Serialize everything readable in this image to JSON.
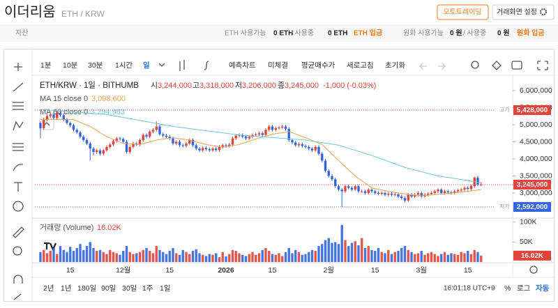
{
  "header": {
    "title": "이더리움",
    "pair": "ETH / KRW",
    "buttons": [
      "오토트레이딩",
      "거래화면 설정"
    ]
  },
  "asset_bar": {
    "label": "자산",
    "eth_available_label": "ETH 사용가능",
    "eth_available": "0 ETH",
    "eth_in_use_label": "/ 사용중",
    "eth_in_use": "0 ETH",
    "eth_deposit": "ETH 입금",
    "krw_available_label": "원화 사용가능",
    "krw_available": "0 원",
    "krw_in_use_label": "/ 사용중",
    "krw_in_use": "0 원",
    "krw_deposit": "원화 입금"
  },
  "toolbar": {
    "intervals": [
      "1분",
      "10분",
      "30분",
      "1시간",
      "일"
    ],
    "actions": [
      "예측차트",
      "미체결",
      "평균매수가",
      "새로고침",
      "초기화"
    ]
  },
  "bottom_bar": {
    "ranges": [
      "2년",
      "1년",
      "180일",
      "90일",
      "30일",
      "1주",
      "1일"
    ],
    "time": "16:01:18 UTC+9",
    "options": [
      "%",
      "로그",
      "자동"
    ]
  },
  "chart_data": {
    "type": "candlestick",
    "title": "ETH/KRW · 1일 · BITHUMB",
    "ohlc_legend": [
      {
        "name": "시",
        "value": "3,244,000"
      },
      {
        "name": "고",
        "value": "3,318,000"
      },
      {
        "name": "저",
        "value": "3,206,000"
      },
      {
        "name": "종",
        "value": "3,245,000"
      }
    ],
    "change": "-1,000 (-0.03%)",
    "categories": [
      null,
      null,
      null,
      null,
      null,
      null,
      null,
      null,
      null,
      "15",
      null,
      null,
      null,
      null,
      null,
      null,
      null,
      null,
      null,
      null,
      null,
      null,
      null,
      null,
      null,
      "12월",
      null,
      null,
      null,
      null,
      null,
      null,
      null,
      null,
      null,
      null,
      null,
      null,
      null,
      "15",
      null,
      null,
      null,
      null,
      null,
      null,
      null,
      null,
      null,
      null,
      null,
      null,
      null,
      null,
      null,
      null,
      "2026",
      null,
      null,
      null,
      null,
      null,
      null,
      null,
      null,
      null,
      null,
      null,
      null,
      null,
      "15",
      null,
      null,
      null,
      null,
      null,
      null,
      null,
      null,
      null,
      null,
      null,
      null,
      null,
      null,
      null,
      null,
      "2월",
      null,
      null,
      null,
      null,
      null,
      null,
      null,
      null,
      null,
      null,
      null,
      null,
      null,
      "15",
      null,
      null,
      null,
      null,
      null,
      null,
      null,
      null,
      null,
      null,
      null,
      null,
      null,
      "3월",
      null,
      null,
      null,
      null,
      null,
      null,
      null,
      null,
      null,
      null,
      null,
      null,
      null,
      "15",
      null,
      null,
      null,
      null
    ],
    "open": [
      5050000,
      4900000,
      5150000,
      5250000,
      5300000,
      5200000,
      5350000,
      5280000,
      5150000,
      5050000,
      4980000,
      4850000,
      4780000,
      4650000,
      4550000,
      4450000,
      4300000,
      4200000,
      4250000,
      4150000,
      4250000,
      4350000,
      4420000,
      4520000,
      4600000,
      4580000,
      4500000,
      4200000,
      4350000,
      4450000,
      4420000,
      4550000,
      4700000,
      4650000,
      4800000,
      4850000,
      4950000,
      4720000,
      4680000,
      4650000,
      4600000,
      4450000,
      4500000,
      4400000,
      4380000,
      4450000,
      4550000,
      4400000,
      4300000,
      4250000,
      4320000,
      4280000,
      4250000,
      4300000,
      4260000,
      4350000,
      4400000,
      4380000,
      4420000,
      4600000,
      4680000,
      4700000,
      4650000,
      4600000,
      4650000,
      4700000,
      4720000,
      4750000,
      4700000,
      4850000,
      4950000,
      4850000,
      4900000,
      4920000,
      4950000,
      4880000,
      4550000,
      4480000,
      4400000,
      4430000,
      4380000,
      4350000,
      4300000,
      4250000,
      4350000,
      4150000,
      3950000,
      3650000,
      3500000,
      3400000,
      3200000,
      3100000,
      3050000,
      3200000,
      3150000,
      3100000,
      3200000,
      3050000,
      3050000,
      3000000,
      3100000,
      3050000,
      3000000,
      2980000,
      3000000,
      2950000,
      2980000,
      2950000,
      2960000,
      2900000,
      2850000,
      2780000,
      2950000,
      2900000,
      2950000,
      3000000,
      2900000,
      2950000,
      2980000,
      3000000,
      3050000,
      3100000,
      3000000,
      3050000,
      3020000,
      3000000,
      3050000,
      3080000,
      3100000,
      3150000,
      3120000,
      3200000,
      3450000,
      3244000
    ],
    "high": [
      5100000,
      5200000,
      5300000,
      5350000,
      5350000,
      5400000,
      5428000,
      5330000,
      5200000,
      5100000,
      5030000,
      4900000,
      4830000,
      4700000,
      4600000,
      4500000,
      4350000,
      4300000,
      4300000,
      4300000,
      4400000,
      4470000,
      4570000,
      4650000,
      4650000,
      4630000,
      4550000,
      4400000,
      4500000,
      4500000,
      4600000,
      4750000,
      4750000,
      4850000,
      4900000,
      5100000,
      5000000,
      4770000,
      4730000,
      4700000,
      4650000,
      4550000,
      4550000,
      4450000,
      4500000,
      4600000,
      4600000,
      4450000,
      4350000,
      4370000,
      4370000,
      4330000,
      4350000,
      4350000,
      4400000,
      4450000,
      4450000,
      4470000,
      4650000,
      4730000,
      4750000,
      4750000,
      4700000,
      4700000,
      4750000,
      4770000,
      4800000,
      4800000,
      4900000,
      5000000,
      5000000,
      4950000,
      4970000,
      5000000,
      5000000,
      4930000,
      4600000,
      4530000,
      4480000,
      4480000,
      4430000,
      4400000,
      4350000,
      4400000,
      4400000,
      4200000,
      4000000,
      3700000,
      3550000,
      3450000,
      3250000,
      3150000,
      3250000,
      3250000,
      3200000,
      3250000,
      3250000,
      3100000,
      3100000,
      3150000,
      3150000,
      3100000,
      3050000,
      3050000,
      3050000,
      3030000,
      3030000,
      3010000,
      3010000,
      2950000,
      2900000,
      3000000,
      3000000,
      3000000,
      3050000,
      3050000,
      3000000,
      3030000,
      3050000,
      3100000,
      3150000,
      3150000,
      3100000,
      3100000,
      3070000,
      3100000,
      3130000,
      3150000,
      3200000,
      3200000,
      3250000,
      3480000,
      3500000,
      3318000
    ],
    "low": [
      4600000,
      4850000,
      5100000,
      5200000,
      5150000,
      5150000,
      5230000,
      5100000,
      5000000,
      4930000,
      4800000,
      4730000,
      4600000,
      4500000,
      4400000,
      3950000,
      4100000,
      4150000,
      4100000,
      4100000,
      4200000,
      4300000,
      4370000,
      4470000,
      4530000,
      4450000,
      4150000,
      4150000,
      4300000,
      4370000,
      4370000,
      4500000,
      4600000,
      4600000,
      4750000,
      4800000,
      4670000,
      4630000,
      4600000,
      4550000,
      4400000,
      4400000,
      4350000,
      4330000,
      4330000,
      4400000,
      4350000,
      4250000,
      4200000,
      4200000,
      4230000,
      4200000,
      4200000,
      4210000,
      4210000,
      4300000,
      4330000,
      4330000,
      4370000,
      4550000,
      4630000,
      4600000,
      4550000,
      4550000,
      4600000,
      4650000,
      4670000,
      4650000,
      4650000,
      4800000,
      4800000,
      4800000,
      4850000,
      4870000,
      4830000,
      4500000,
      4430000,
      4350000,
      4350000,
      4330000,
      4300000,
      4250000,
      4200000,
      4200000,
      4100000,
      3900000,
      3600000,
      3450000,
      3350000,
      3150000,
      3050000,
      2592000,
      3000000,
      3100000,
      3050000,
      3050000,
      3000000,
      3000000,
      2950000,
      2950000,
      3000000,
      2950000,
      2930000,
      2930000,
      2900000,
      2900000,
      2900000,
      2900000,
      2850000,
      2800000,
      2720000,
      2730000,
      2850000,
      2850000,
      2900000,
      2850000,
      2850000,
      2900000,
      2930000,
      2950000,
      3000000,
      2950000,
      2950000,
      2970000,
      2950000,
      2950000,
      3000000,
      3030000,
      3050000,
      3070000,
      3070000,
      3150000,
      3200000,
      3206000
    ],
    "close": [
      4900000,
      5150000,
      5250000,
      5300000,
      5200000,
      5350000,
      5280000,
      5150000,
      5050000,
      4980000,
      4850000,
      4780000,
      4650000,
      4550000,
      4450000,
      4300000,
      4200000,
      4250000,
      4150000,
      4250000,
      4350000,
      4420000,
      4520000,
      4600000,
      4580000,
      4500000,
      4200000,
      4350000,
      4450000,
      4420000,
      4550000,
      4700000,
      4650000,
      4800000,
      4850000,
      4950000,
      4720000,
      4680000,
      4650000,
      4600000,
      4450000,
      4500000,
      4400000,
      4380000,
      4450000,
      4550000,
      4400000,
      4300000,
      4250000,
      4320000,
      4280000,
      4250000,
      4300000,
      4260000,
      4350000,
      4400000,
      4380000,
      4420000,
      4600000,
      4680000,
      4700000,
      4650000,
      4600000,
      4650000,
      4700000,
      4720000,
      4750000,
      4700000,
      4850000,
      4950000,
      4850000,
      4900000,
      4920000,
      4950000,
      4880000,
      4550000,
      4480000,
      4400000,
      4430000,
      4380000,
      4350000,
      4300000,
      4250000,
      4350000,
      4150000,
      3950000,
      3650000,
      3500000,
      3400000,
      3200000,
      3100000,
      3050000,
      3200000,
      3150000,
      3100000,
      3200000,
      3050000,
      3050000,
      3000000,
      3100000,
      3050000,
      3000000,
      2980000,
      3000000,
      2950000,
      2980000,
      2950000,
      2960000,
      2900000,
      2850000,
      2780000,
      2950000,
      2900000,
      2950000,
      3000000,
      2900000,
      2950000,
      2980000,
      3000000,
      3050000,
      3100000,
      3000000,
      3050000,
      3020000,
      3000000,
      3050000,
      3080000,
      3100000,
      3150000,
      3120000,
      3200000,
      3450000,
      3250000,
      3245000
    ],
    "up_color": "#e0443b",
    "down_color": "#3366dd",
    "ylim": [
      2265000,
      6367000
    ],
    "yticks": [
      {
        "value": 3000000,
        "label": "3,000,000"
      },
      {
        "value": 3500000,
        "label": "3,500,000"
      },
      {
        "value": 4000000,
        "label": "4,000,000"
      },
      {
        "value": 4500000,
        "label": "4,500,000"
      },
      {
        "value": 5000000,
        "label": "5,000,000"
      },
      {
        "value": 5500000,
        "label": "5,500,000"
      },
      {
        "value": 6000000,
        "label": "6,000,000"
      }
    ],
    "grid": false,
    "series": [
      {
        "name": "MA 15 close 0",
        "color": "#f0a04b",
        "label": "3,098,600",
        "values": [
          5150000,
          5150000,
          5150000,
          5150000,
          5150000,
          5150000,
          5150000,
          5150000,
          5150000,
          5150000,
          5150000,
          5110000,
          5070000,
          5030000,
          4990000,
          4950000,
          4890000,
          4830000,
          4770000,
          4710000,
          4650000,
          4610000,
          4570000,
          4530000,
          4490000,
          4450000,
          4444000,
          4438000,
          4432000,
          4426000,
          4420000,
          4446000,
          4472000,
          4498000,
          4524000,
          4550000,
          4564000,
          4578000,
          4592000,
          4606000,
          4620000,
          4606000,
          4592000,
          4578000,
          4564000,
          4550000,
          4524000,
          4498000,
          4472000,
          4446000,
          4420000,
          4404000,
          4388000,
          4372000,
          4356000,
          4340000,
          4356000,
          4372000,
          4388000,
          4404000,
          4420000,
          4452000,
          4484000,
          4516000,
          4548000,
          4580000,
          4608000,
          4636000,
          4664000,
          4692000,
          4720000,
          4736000,
          4752000,
          4768000,
          4784000,
          4800000,
          4764000,
          4728000,
          4692000,
          4656000,
          4620000,
          4580000,
          4540000,
          4500000,
          4460000,
          4420000,
          4326000,
          4232000,
          4138000,
          4044000,
          3950000,
          3860000,
          3770000,
          3680000,
          3590000,
          3500000,
          3430000,
          3360000,
          3290000,
          3220000,
          3150000,
          3130000,
          3110000,
          3090000,
          3070000,
          3050000,
          3034000,
          3018000,
          3002000,
          2986000,
          2970000,
          2960000,
          2950000,
          2940000,
          2930000,
          2920000,
          2928000,
          2936000,
          2944000,
          2952000,
          2960000,
          2970000,
          2980000,
          2990000,
          3000000,
          3010000,
          3020000,
          3030000,
          3040000,
          3050000,
          3060000,
          3073000,
          3086000,
          3098600
        ]
      },
      {
        "name": "MA 60 close 0",
        "color": "#6cc7e0",
        "label": "3,294,983",
        "values": [
          5450000,
          5442500,
          5435000,
          5427500,
          5420000,
          5412500,
          5405000,
          5397500,
          5390000,
          5382500,
          5375000,
          5367500,
          5360000,
          5352500,
          5345000,
          5337500,
          5330000,
          5322500,
          5315000,
          5307500,
          5300000,
          5282500,
          5265000,
          5247500,
          5230000,
          5212500,
          5195000,
          5177500,
          5160000,
          5142500,
          5125000,
          5107500,
          5090000,
          5072500,
          5055000,
          5037500,
          5020000,
          5002500,
          4985000,
          4967500,
          4950000,
          4937500,
          4925000,
          4912500,
          4900000,
          4887500,
          4875000,
          4862500,
          4850000,
          4837500,
          4825000,
          4812500,
          4800000,
          4787500,
          4775000,
          4762500,
          4750000,
          4737500,
          4725000,
          4712500,
          4700000,
          4692500,
          4685000,
          4677500,
          4670000,
          4662500,
          4655000,
          4647500,
          4640000,
          4632500,
          4625000,
          4617500,
          4610000,
          4602500,
          4595000,
          4587500,
          4580000,
          4572500,
          4565000,
          4557500,
          4550000,
          4535000,
          4520000,
          4505000,
          4490000,
          4475000,
          4460000,
          4445000,
          4430000,
          4415000,
          4400000,
          4370000,
          4340000,
          4310000,
          4280000,
          4250000,
          4220000,
          4190000,
          4160000,
          4130000,
          4100000,
          4065000,
          4030000,
          3995000,
          3960000,
          3925000,
          3890000,
          3855000,
          3820000,
          3785000,
          3750000,
          3725000,
          3700000,
          3675000,
          3650000,
          3625000,
          3600000,
          3575000,
          3550000,
          3525000,
          3500000,
          3485000,
          3470000,
          3455000,
          3440000,
          3425000,
          3410000,
          3395000,
          3380000,
          3365000,
          3350000,
          3332000,
          3313000,
          3294983
        ]
      }
    ],
    "price_markers": [
      {
        "name": "고가",
        "value": 5428000,
        "label": "5,428,000",
        "color": "#e0443b"
      },
      {
        "value": 3245000,
        "label": "3,245,000",
        "color": "#e0443b"
      },
      {
        "name": "저가",
        "value": 2592000,
        "label": "2,592,000",
        "color": "#3366dd"
      }
    ],
    "volume": {
      "label": "거래량 (Volume)",
      "current_label": "16.02K",
      "ylim": [
        0,
        110000
      ],
      "yticks": [
        {
          "value": 50000,
          "label": "50K"
        },
        {
          "value": 100000,
          "label": "100K"
        }
      ],
      "values": [
        25000,
        30000,
        22000,
        28000,
        35000,
        20000,
        40000,
        30000,
        25000,
        38000,
        28000,
        35000,
        45000,
        30000,
        40000,
        50000,
        35000,
        28000,
        30000,
        25000,
        20000,
        30000,
        25000,
        22000,
        18000,
        28000,
        40000,
        25000,
        20000,
        22000,
        25000,
        30000,
        35000,
        28000,
        22000,
        40000,
        30000,
        25000,
        20000,
        28000,
        35000,
        22000,
        18000,
        30000,
        25000,
        20000,
        28000,
        32000,
        22000,
        18000,
        15000,
        20000,
        18000,
        22000,
        12000,
        25000,
        14000,
        20000,
        30000,
        28000,
        22000,
        18000,
        15000,
        20000,
        25000,
        18000,
        22000,
        30000,
        35000,
        28000,
        20000,
        18000,
        22000,
        15000,
        25000,
        35000,
        22000,
        30000,
        25000,
        18000,
        20000,
        25000,
        30000,
        28000,
        40000,
        45000,
        55000,
        60000,
        48000,
        50000,
        45000,
        93000,
        55000,
        40000,
        48000,
        52000,
        42000,
        60000,
        35000,
        40000,
        30000,
        28000,
        35000,
        25000,
        22000,
        30000,
        20000,
        25000,
        28000,
        35000,
        40000,
        30000,
        25000,
        20000,
        22000,
        28000,
        18000,
        22000,
        25000,
        20000,
        15000,
        20000,
        25000,
        18000,
        22000,
        20000,
        18000,
        25000,
        22000,
        28000,
        20000,
        30000,
        25000,
        16020
      ]
    }
  }
}
